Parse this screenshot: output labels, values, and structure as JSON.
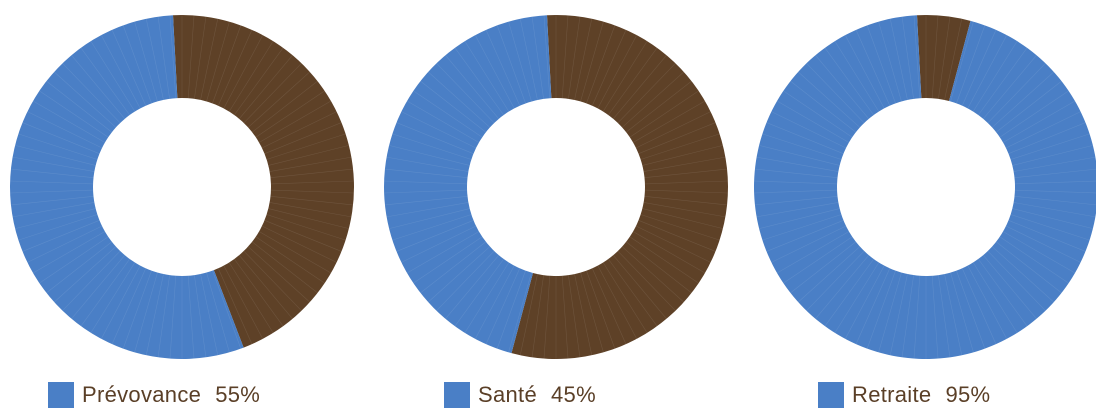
{
  "colors": {
    "primary": "#4a7fc6",
    "secondary": "#5e4127",
    "background": "#ffffff",
    "text": "#5a3f27"
  },
  "chart_data": [
    {
      "type": "pie",
      "style": "donut",
      "label": "Prévovance",
      "value_label": "55%",
      "slices": [
        {
          "name": "Prévovance",
          "value": 55,
          "color": "#4a7fc6"
        },
        {
          "name": "",
          "value": 45,
          "color": "#5e4127"
        }
      ]
    },
    {
      "type": "pie",
      "style": "donut",
      "label": "Santé",
      "value_label": "45%",
      "slices": [
        {
          "name": "Santé",
          "value": 45,
          "color": "#4a7fc6"
        },
        {
          "name": "",
          "value": 55,
          "color": "#5e4127"
        }
      ]
    },
    {
      "type": "pie",
      "style": "donut",
      "label": "Retraite",
      "value_label": "95%",
      "slices": [
        {
          "name": "Retraite",
          "value": 95,
          "color": "#4a7fc6"
        },
        {
          "name": "",
          "value": 5,
          "color": "#5e4127"
        }
      ]
    }
  ]
}
